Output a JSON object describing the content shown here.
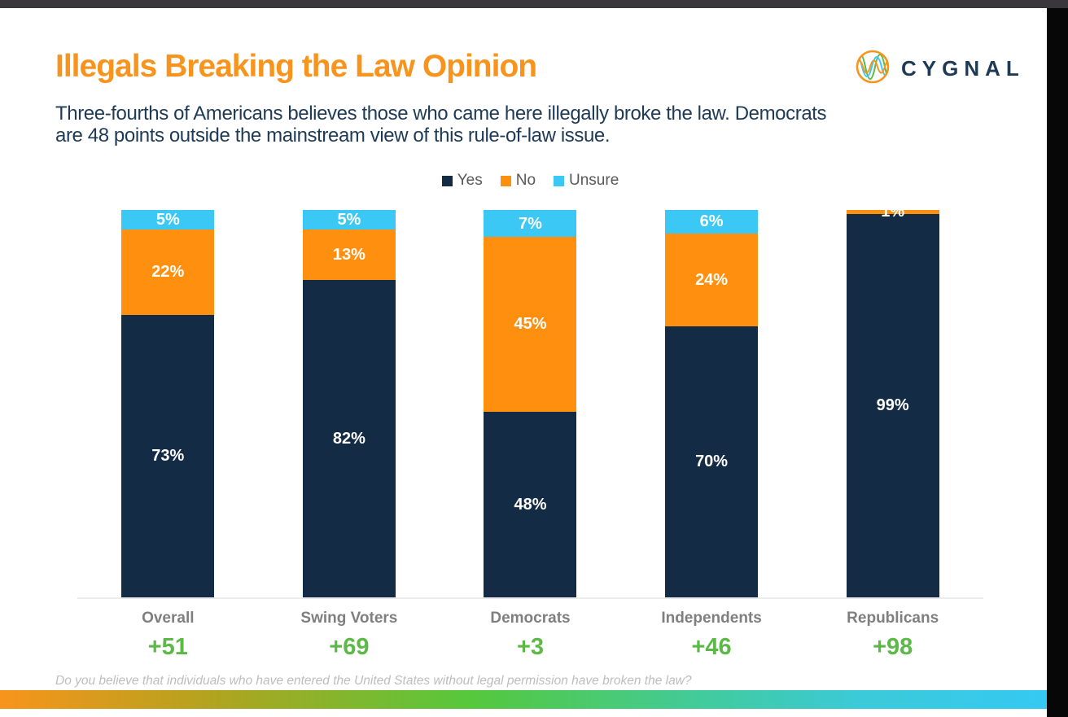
{
  "header": {
    "title": "Illegals Breaking the Law Opinion",
    "subtitle_line1": "Three-fourths of Americans believes those who came here illegally broke the law. Democrats",
    "subtitle_line2": "are 48 points outside the mainstream view of this rule-of-law issue.",
    "brand": "CYGNAL"
  },
  "footnote": "Do you believe that individuals who have entered the United States without legal permission have broken the law?",
  "colors": {
    "title_orange": "#f7941d",
    "subtitle_navy": "#1d3a57",
    "net_green": "#5cb947",
    "category_gray": "#7f7f7f",
    "axis_line": "#ebebeb",
    "topbar": "#39363c",
    "side_strip": "#070707"
  },
  "chart_data": {
    "type": "bar",
    "stacked": true,
    "title": "Illegals Breaking the Law Opinion",
    "question": "Do you believe that individuals who have entered the United States without legal permission have broken the law?",
    "categories": [
      "Overall",
      "Swing Voters",
      "Democrats",
      "Independents",
      "Republicans"
    ],
    "series": [
      {
        "name": "Yes",
        "color": "#132b44",
        "values": [
          73,
          82,
          48,
          70,
          99
        ]
      },
      {
        "name": "No",
        "color": "#ff8f0e",
        "values": [
          22,
          13,
          45,
          24,
          1
        ]
      },
      {
        "name": "Unsure",
        "color": "#3bc8f5",
        "values": [
          5,
          5,
          7,
          6,
          0
        ]
      }
    ],
    "net_labels": [
      "+51",
      "+69",
      "+3",
      "+46",
      "+98"
    ],
    "value_label_suffix": "%",
    "ylim": [
      0,
      100
    ],
    "grid": false,
    "legend_position": "top-center"
  }
}
